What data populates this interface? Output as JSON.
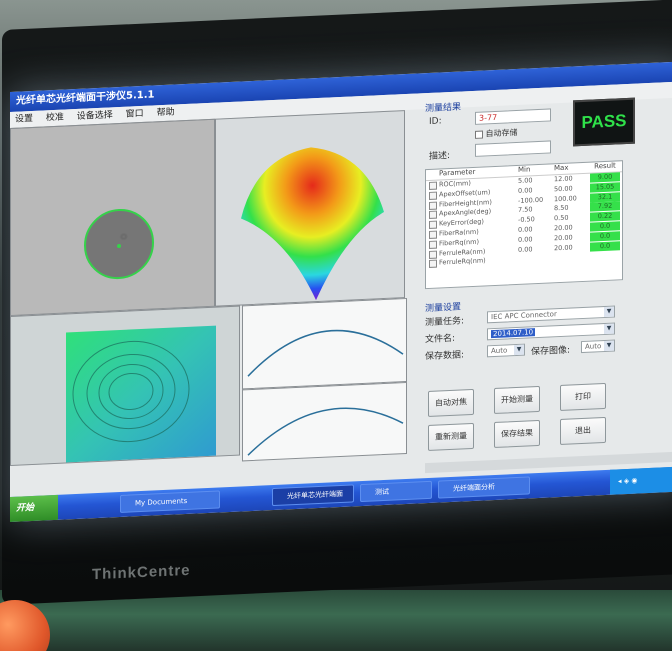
{
  "window": {
    "title": "光纤单芯光纤端面干涉仪5.1.1"
  },
  "menu": [
    "设置",
    "校准",
    "设备选择",
    "窗口",
    "帮助"
  ],
  "results": {
    "group_title": "测量结果",
    "id_label": "ID:",
    "id_value": "3-77",
    "auto_check_label": "自动存储",
    "desc_label": "描述:",
    "desc_value": "",
    "status": "PASS",
    "status_color": "#2fe04a"
  },
  "param_table": {
    "headers": [
      "Parameter",
      "Min",
      "Max",
      "Result"
    ],
    "rows": [
      {
        "name": "ROC(mm)",
        "min": "5.00",
        "max": "12.00",
        "result": "9.00"
      },
      {
        "name": "ApexOffset(um)",
        "min": "0.00",
        "max": "50.00",
        "result": "15.05"
      },
      {
        "name": "FiberHeight(nm)",
        "min": "-100.00",
        "max": "100.00",
        "result": "32.1"
      },
      {
        "name": "ApexAngle(deg)",
        "min": "7.50",
        "max": "8.50",
        "result": "7.92"
      },
      {
        "name": "KeyError(deg)",
        "min": "-0.50",
        "max": "0.50",
        "result": "0.22"
      },
      {
        "name": "FiberRa(nm)",
        "min": "0.00",
        "max": "20.00",
        "result": "0.0"
      },
      {
        "name": "FiberRq(nm)",
        "min": "0.00",
        "max": "20.00",
        "result": "0.0"
      },
      {
        "name": "FerruleRa(nm)",
        "min": "0.00",
        "max": "20.00",
        "result": "0.0"
      },
      {
        "name": "FerruleRq(nm)",
        "min": "",
        "max": "",
        "result": ""
      }
    ]
  },
  "settings": {
    "group_title": "测量设置",
    "task_label": "测量任务:",
    "task_value": "IEC APC Connector",
    "file_label": "文件名:",
    "file_value": "2014.07.10",
    "save_label": "保存数据:",
    "save_value": "Auto",
    "save2_label": "保存图像:",
    "save2_value": "Auto"
  },
  "buttons": {
    "auto_focus": "自动对焦",
    "start_measure": "开始测量",
    "print": "打印",
    "remeasure": "重新测量",
    "save_result": "保存结果",
    "exit": "退出"
  },
  "taskbar": {
    "start": "开始",
    "items": [
      {
        "label": "My Documents"
      },
      {
        "label": "光纤单芯光纤端面"
      },
      {
        "label": "测试"
      },
      {
        "label": "光纤端面分析"
      }
    ],
    "tray_text": "◂ ◈ ◉"
  },
  "monitor": {
    "brand": "ThinkCentre"
  }
}
